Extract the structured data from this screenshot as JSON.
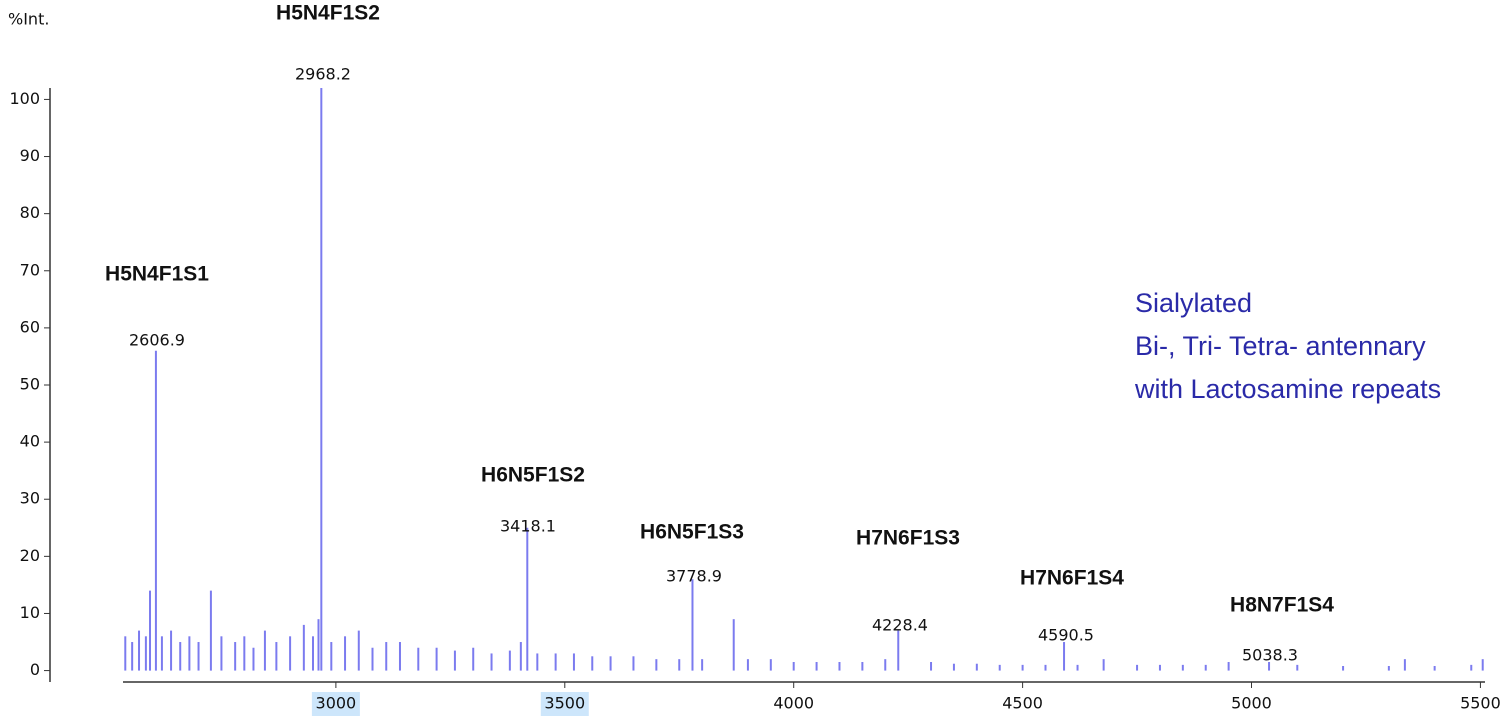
{
  "chart_data": {
    "type": "spectrum",
    "ylabel": "%Int.",
    "color": "#7b7bef",
    "xlim": [
      2535,
      5510
    ],
    "xticks": [
      3000,
      3500,
      4000,
      4500,
      5000,
      5500
    ],
    "ylim": [
      -2,
      102
    ],
    "yticks": [
      0,
      10,
      20,
      30,
      40,
      50,
      60,
      70,
      80,
      90,
      100
    ],
    "peaks": {
      "x": [
        2606.9,
        2968.2,
        3418.1,
        3778.9,
        4228.4,
        4590.5,
        5038.3
      ],
      "values": [
        56,
        102,
        25,
        16,
        7,
        5,
        1.5
      ],
      "labels": [
        "H5N4F1S1",
        "H5N4F1S2",
        "H6N5F1S2",
        "H6N5F1S3",
        "H7N6F1S3",
        "H7N6F1S4",
        "H8N7F1S4"
      ]
    },
    "noise": {
      "x": [
        2540,
        2555,
        2570,
        2585,
        2594,
        2620,
        2640,
        2660,
        2680,
        2700,
        2727,
        2750,
        2780,
        2800,
        2820,
        2845,
        2870,
        2900,
        2930,
        2950,
        2962,
        2990,
        3020,
        3050,
        3080,
        3110,
        3140,
        3180,
        3220,
        3260,
        3300,
        3340,
        3380,
        3404,
        3440,
        3480,
        3520,
        3560,
        3600,
        3650,
        3700,
        3750,
        3800,
        3869,
        3900,
        3950,
        4000,
        4050,
        4100,
        4150,
        4200,
        4300,
        4350,
        4400,
        4450,
        4500,
        4550,
        4620,
        4677,
        4750,
        4800,
        4850,
        4900,
        4950,
        5100,
        5200,
        5300,
        5335,
        5400,
        5480,
        5505
      ],
      "values": [
        6,
        5,
        7,
        6,
        14,
        6,
        7,
        5,
        6,
        5,
        14,
        6,
        5,
        6,
        4,
        7,
        5,
        6,
        8,
        6,
        9,
        5,
        6,
        7,
        4,
        5,
        5,
        4,
        4,
        3.5,
        4,
        3,
        3.5,
        5,
        3,
        3,
        3,
        2.5,
        2.5,
        2.5,
        2,
        2,
        2,
        9,
        2,
        2,
        1.5,
        1.5,
        1.5,
        1.5,
        2,
        1.5,
        1.2,
        1.2,
        1,
        1,
        1,
        1,
        2,
        1,
        1,
        1,
        1,
        1.5,
        1,
        0.8,
        0.8,
        2,
        0.8,
        1,
        2
      ]
    },
    "note": [
      "Sialylated",
      "Bi-, Tri- Tetra- antennary",
      "with Lactosamine repeats"
    ]
  }
}
